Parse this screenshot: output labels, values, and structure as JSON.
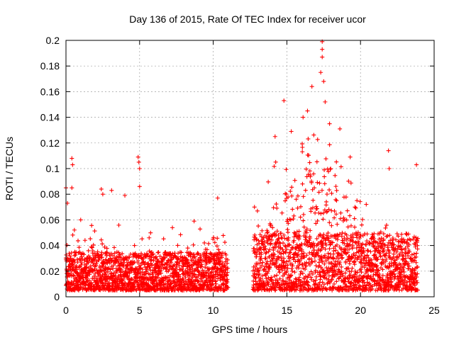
{
  "chart_data": {
    "type": "scatter",
    "title": "Day 136 of 2015, Rate Of TEC Index for receiver ucor",
    "xlabel": "GPS time / hours",
    "ylabel": "ROTI / TECUs",
    "xlim": [
      0,
      25
    ],
    "ylim": [
      0,
      0.2
    ],
    "xticks": [
      0,
      5,
      10,
      15,
      20,
      25
    ],
    "xtick_labels": [
      "0",
      "5",
      "10",
      "15",
      "20",
      "25"
    ],
    "yticks": [
      0,
      0.02,
      0.04,
      0.06,
      0.08,
      0.1,
      0.12,
      0.14,
      0.16,
      0.18,
      0.2
    ],
    "ytick_labels": [
      "0",
      "0.02",
      "0.04",
      "0.06",
      "0.08",
      "0.1",
      "0.12",
      "0.14",
      "0.16",
      "0.18",
      "0.2"
    ],
    "grid": true,
    "marker": "+",
    "color": "#ff0000",
    "data_gap_hours": [
      11.0,
      12.7
    ],
    "series": [
      {
        "name": "ROTI",
        "notable_points": [
          {
            "x": 0.0,
            "y": 0.085
          },
          {
            "x": 0.1,
            "y": 0.073
          },
          {
            "x": 0.4,
            "y": 0.108
          },
          {
            "x": 0.45,
            "y": 0.103
          },
          {
            "x": 0.4,
            "y": 0.085
          },
          {
            "x": 1.0,
            "y": 0.06
          },
          {
            "x": 2.4,
            "y": 0.084
          },
          {
            "x": 2.5,
            "y": 0.08
          },
          {
            "x": 3.1,
            "y": 0.083
          },
          {
            "x": 4.0,
            "y": 0.079
          },
          {
            "x": 4.9,
            "y": 0.109
          },
          {
            "x": 4.95,
            "y": 0.105
          },
          {
            "x": 5.0,
            "y": 0.1
          },
          {
            "x": 5.0,
            "y": 0.086
          },
          {
            "x": 8.7,
            "y": 0.059
          },
          {
            "x": 10.3,
            "y": 0.077
          },
          {
            "x": 12.8,
            "y": 0.07
          },
          {
            "x": 14.2,
            "y": 0.125
          },
          {
            "x": 14.8,
            "y": 0.153
          },
          {
            "x": 15.3,
            "y": 0.129
          },
          {
            "x": 16.1,
            "y": 0.14
          },
          {
            "x": 16.4,
            "y": 0.145
          },
          {
            "x": 16.7,
            "y": 0.164
          },
          {
            "x": 17.3,
            "y": 0.175
          },
          {
            "x": 17.4,
            "y": 0.199
          },
          {
            "x": 17.4,
            "y": 0.193
          },
          {
            "x": 17.4,
            "y": 0.187
          },
          {
            "x": 17.5,
            "y": 0.168
          },
          {
            "x": 17.6,
            "y": 0.152
          },
          {
            "x": 17.9,
            "y": 0.135
          },
          {
            "x": 18.6,
            "y": 0.131
          },
          {
            "x": 19.3,
            "y": 0.109
          },
          {
            "x": 21.9,
            "y": 0.114
          },
          {
            "x": 21.95,
            "y": 0.1
          },
          {
            "x": 23.8,
            "y": 0.103
          }
        ],
        "baseline_range_0_11h": [
          0.005,
          0.035
        ],
        "baseline_range_12_7_24h": [
          0.005,
          0.05
        ]
      }
    ]
  }
}
